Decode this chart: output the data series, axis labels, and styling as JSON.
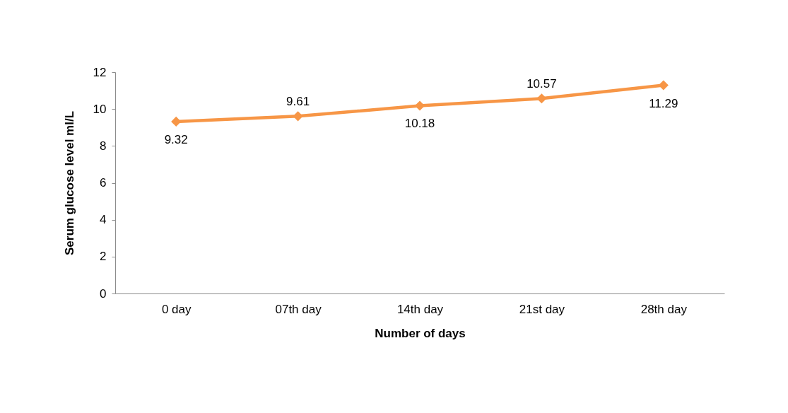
{
  "chart_data": {
    "type": "line",
    "xlabel": "Number of days",
    "ylabel": "Serum glucose level ml/L",
    "categories": [
      "0  day",
      "07th day",
      "14th day",
      "21st day",
      "28th day"
    ],
    "series": [
      {
        "color": "#f79646",
        "values": [
          9.32,
          9.61,
          10.18,
          10.57,
          11.29
        ]
      }
    ],
    "ylim": [
      0,
      12
    ],
    "yticks": [
      0,
      2,
      4,
      6,
      8,
      10,
      12
    ],
    "grid": false,
    "marker": "diamond",
    "line_style": "solid",
    "data_labels": true
  }
}
